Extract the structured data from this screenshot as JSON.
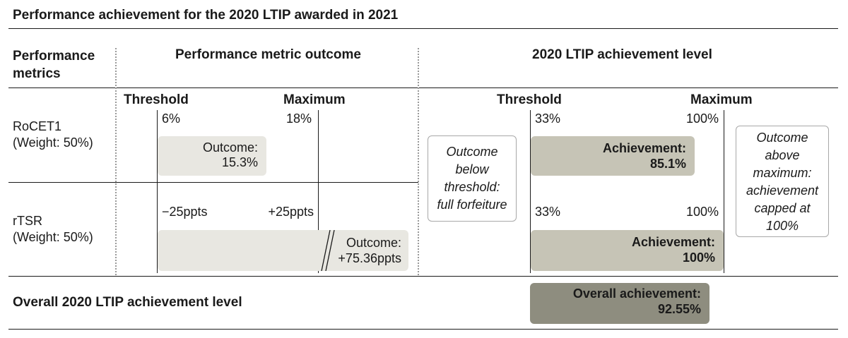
{
  "chart_data": {
    "type": "table",
    "title": "Performance achievement for the 2020 LTIP awarded in 2021",
    "columns": {
      "metrics": "Performance\nmetrics",
      "outcome": "Performance metric outcome",
      "achievement": "2020 LTIP achievement level"
    },
    "subheaders": {
      "outcome_threshold": "Threshold",
      "outcome_maximum": "Maximum",
      "achievement_threshold": "Threshold",
      "achievement_maximum": "Maximum"
    },
    "rows": [
      {
        "metric": "RoCET1\n(Weight: 50%)",
        "threshold_label": "6%",
        "maximum_label": "18%",
        "outcome_text": "Outcome:\n15.3%",
        "outcome_fraction": 0.775,
        "ach_threshold_label": "33%",
        "ach_maximum_label": "100%",
        "achievement_text": "Achievement:\n85.1%",
        "achievement_fraction": 0.85
      },
      {
        "metric": "rTSR\n(Weight: 50%)",
        "threshold_label": "−25ppts",
        "maximum_label": "+25ppts",
        "outcome_text": "Outcome:\n+75.36ppts",
        "outcome_fraction": 1.0,
        "ach_threshold_label": "33%",
        "ach_maximum_label": "100%",
        "achievement_text": "Achievement:\n100%",
        "achievement_fraction": 1.0
      }
    ],
    "notes": {
      "below_threshold": "Outcome\nbelow\nthreshold:\nfull forfeiture",
      "above_maximum": "Outcome\nabove\nmaximum:\nachievement\ncapped at\n100%"
    },
    "overall": {
      "label": "Overall 2020 LTIP achievement level",
      "text": "Overall achievement:\n92.55%",
      "value": 92.55
    }
  },
  "colors": {
    "outcome_bar": "#e8e7e1",
    "achievement_bar": "#c6c4b6",
    "overall_bar": "#8e8d7f"
  }
}
